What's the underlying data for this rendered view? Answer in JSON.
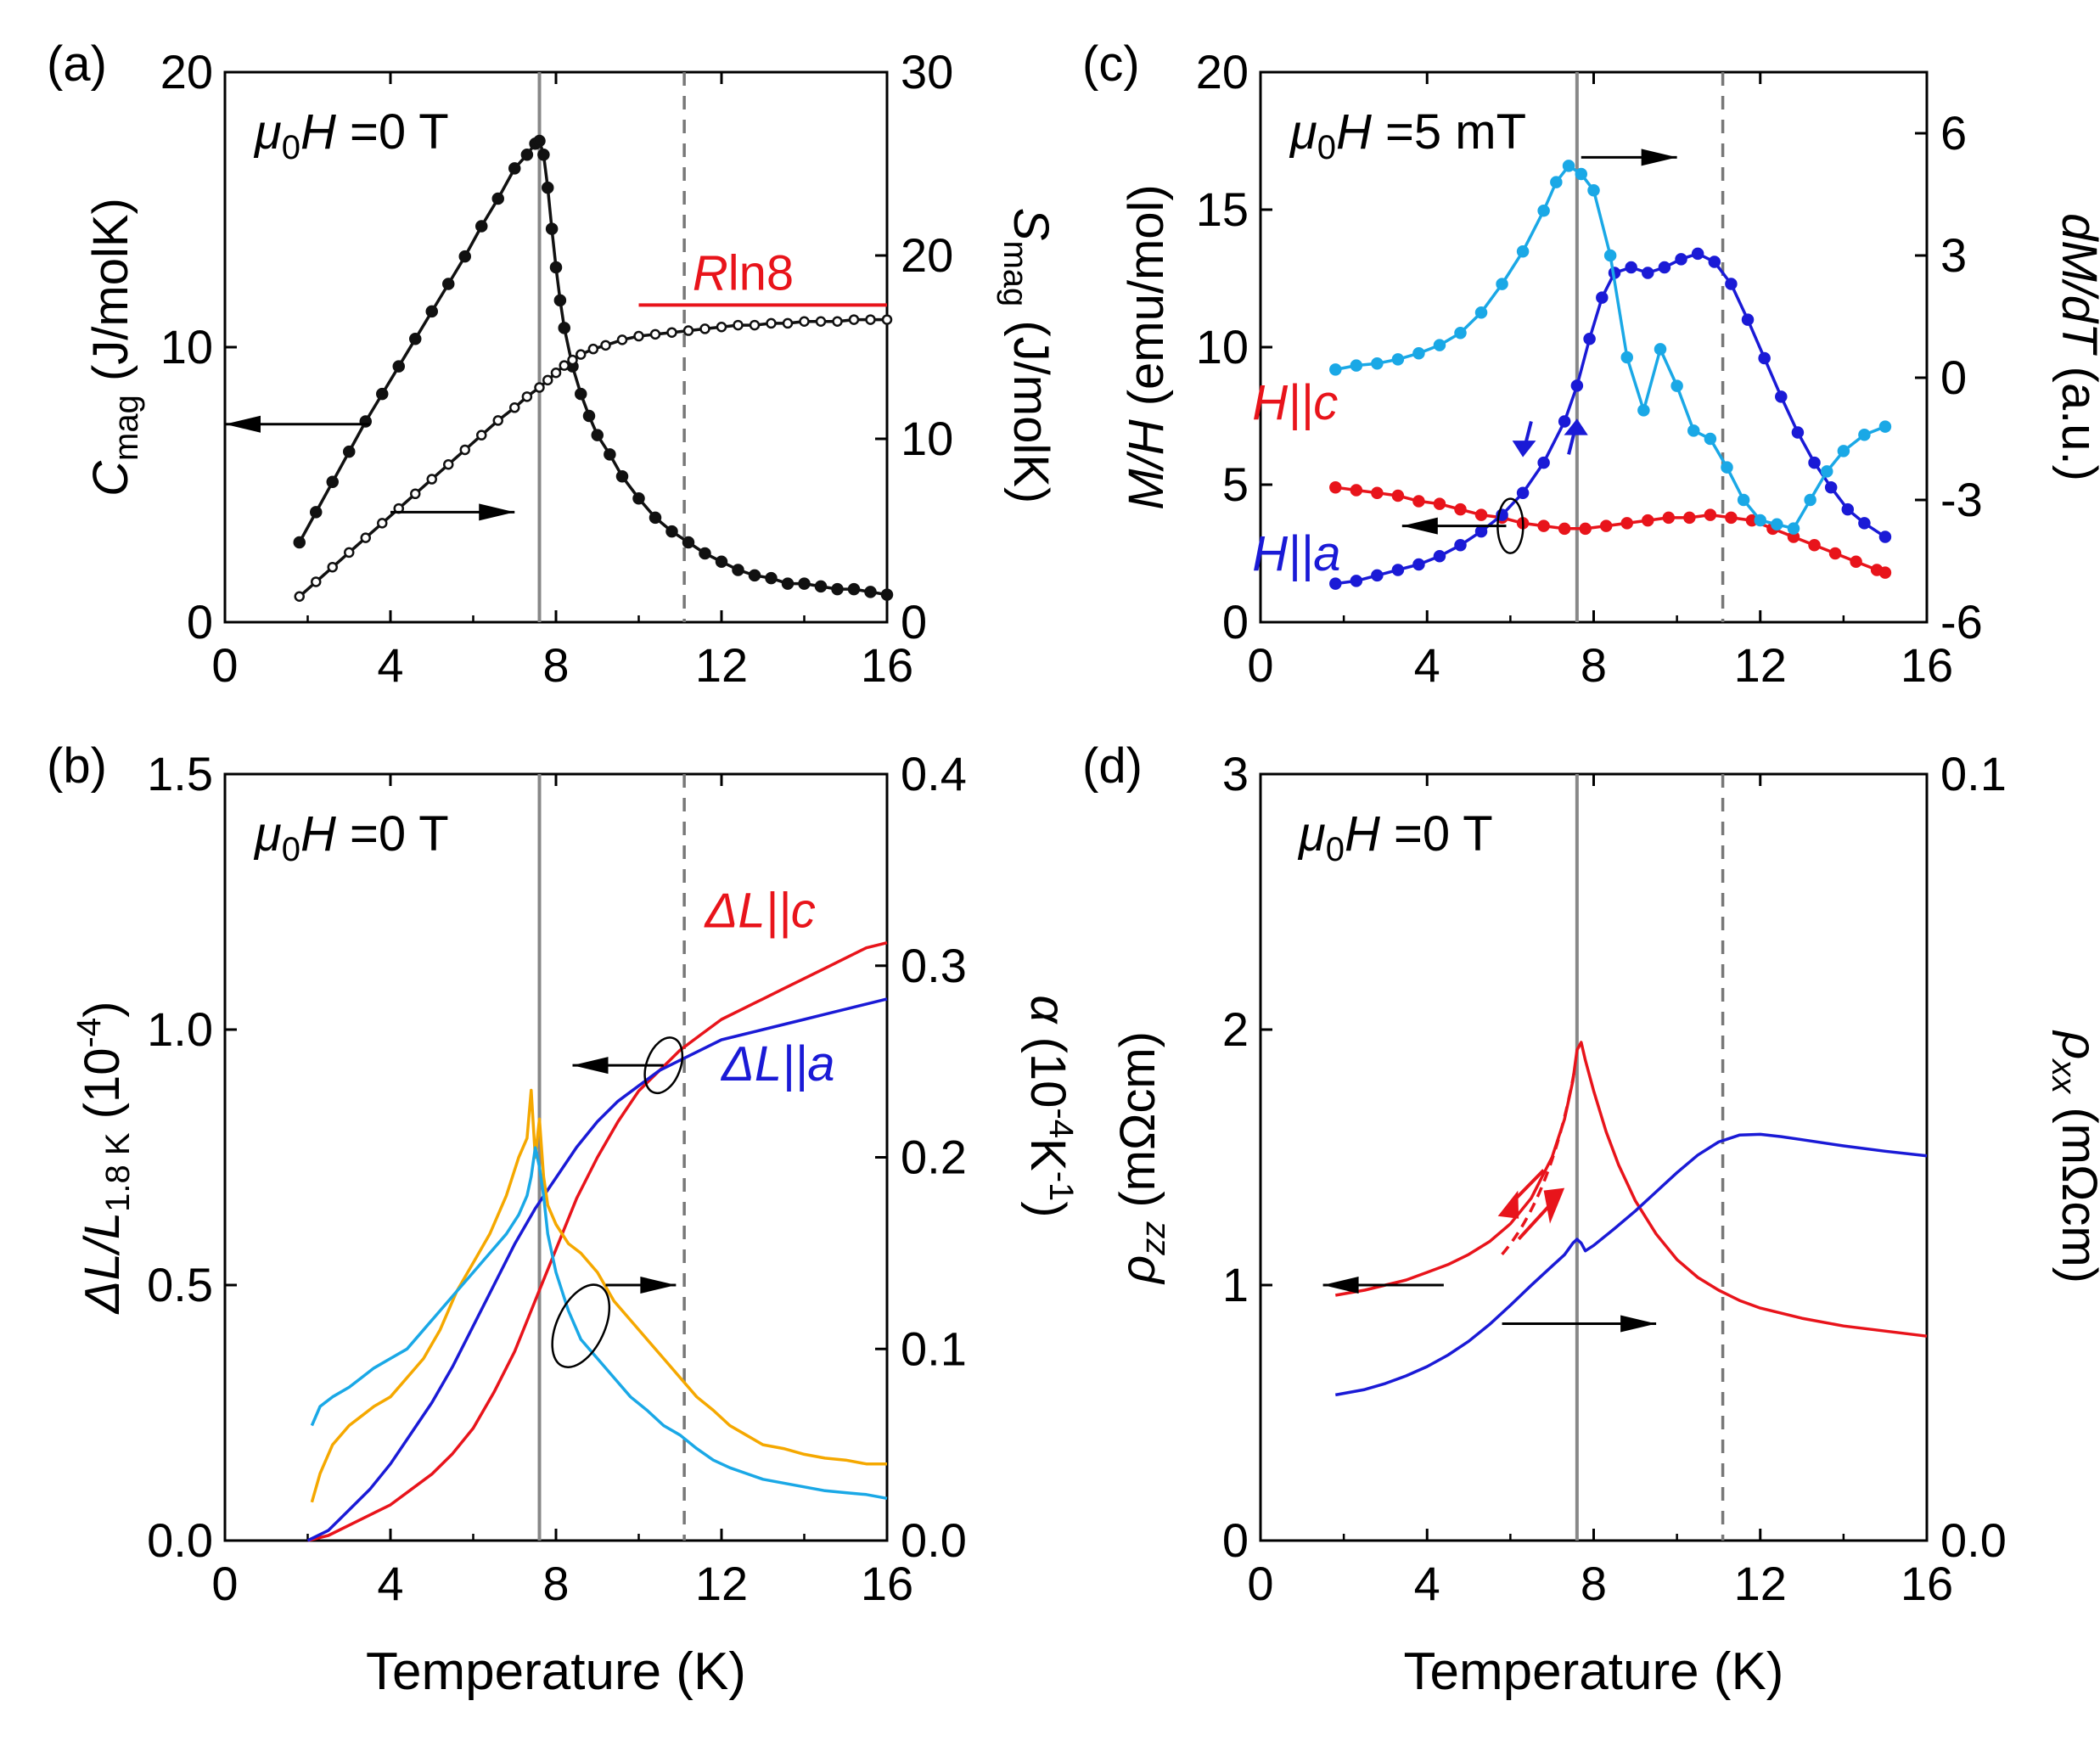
{
  "figure": {
    "xlabel": "Temperature (K)",
    "ref_lines": {
      "solid_T": 7.6,
      "dashed_T": 11.1,
      "solid_color": "#888888",
      "dashed_color": "#777777"
    },
    "colors": {
      "black": "#111111",
      "red": "#e8141b",
      "blue": "#1a1ad6",
      "light_blue": "#1aa8e6",
      "orange": "#f5a800"
    }
  },
  "chart_data": [
    {
      "panel": "a",
      "type": "line",
      "panel_label": "(a)",
      "annotation": {
        "mu": "μ",
        "sub": "0",
        "H": "H",
        "rest": " =0 T"
      },
      "xlim": [
        0,
        16
      ],
      "xticks": [
        0,
        4,
        8,
        12,
        16
      ],
      "ylabel_left": {
        "main": "C",
        "sub": "mag",
        "unit": " (J/molK)"
      },
      "ylabel_right": {
        "main": "S",
        "sub": "mag",
        "unit": " (J/molK)"
      },
      "ylim_left": [
        0,
        20
      ],
      "yticks_left": [
        0,
        10,
        20
      ],
      "ylim_right": [
        0,
        30
      ],
      "yticks_right": [
        0,
        10,
        20,
        30
      ],
      "rln8": {
        "label_R": "R",
        "label_rest": "ln8",
        "value": 17.3,
        "x_range": [
          10,
          16
        ]
      },
      "series": [
        {
          "name": "C_mag",
          "axis": "left",
          "color": "#111111",
          "marker": "filled",
          "x": [
            1.8,
            2.2,
            2.6,
            3.0,
            3.4,
            3.8,
            4.2,
            4.6,
            5.0,
            5.4,
            5.8,
            6.2,
            6.6,
            7.0,
            7.3,
            7.5,
            7.6,
            7.7,
            7.8,
            7.9,
            8.0,
            8.1,
            8.2,
            8.4,
            8.6,
            8.8,
            9.0,
            9.3,
            9.6,
            10.0,
            10.4,
            10.8,
            11.2,
            11.6,
            12.0,
            12.4,
            12.8,
            13.2,
            13.6,
            14.0,
            14.4,
            14.8,
            15.2,
            15.6,
            16.0
          ],
          "y": [
            2.9,
            4.0,
            5.1,
            6.2,
            7.3,
            8.3,
            9.3,
            10.3,
            11.3,
            12.3,
            13.3,
            14.4,
            15.4,
            16.5,
            17.0,
            17.4,
            17.5,
            17.0,
            15.8,
            14.3,
            12.9,
            11.7,
            10.7,
            9.3,
            8.3,
            7.5,
            6.8,
            6.1,
            5.3,
            4.5,
            3.8,
            3.3,
            2.9,
            2.5,
            2.2,
            1.9,
            1.7,
            1.6,
            1.4,
            1.4,
            1.3,
            1.2,
            1.2,
            1.1,
            1.0
          ]
        },
        {
          "name": "S_mag",
          "axis": "right",
          "color": "#111111",
          "marker": "open",
          "x": [
            1.8,
            2.2,
            2.6,
            3.0,
            3.4,
            3.8,
            4.2,
            4.6,
            5.0,
            5.4,
            5.8,
            6.2,
            6.6,
            7.0,
            7.3,
            7.6,
            7.8,
            8.0,
            8.2,
            8.4,
            8.6,
            8.9,
            9.2,
            9.6,
            10.0,
            10.4,
            10.8,
            11.2,
            11.6,
            12.0,
            12.4,
            12.8,
            13.2,
            13.6,
            14.0,
            14.4,
            14.8,
            15.2,
            15.6,
            16.0
          ],
          "y": [
            1.4,
            2.2,
            3.0,
            3.8,
            4.6,
            5.4,
            6.2,
            7.0,
            7.8,
            8.6,
            9.4,
            10.2,
            11.0,
            11.7,
            12.3,
            12.8,
            13.2,
            13.6,
            14.0,
            14.3,
            14.6,
            14.9,
            15.1,
            15.4,
            15.6,
            15.7,
            15.8,
            15.9,
            16.0,
            16.1,
            16.2,
            16.2,
            16.3,
            16.3,
            16.4,
            16.4,
            16.4,
            16.5,
            16.5,
            16.5
          ]
        }
      ]
    },
    {
      "panel": "b",
      "type": "line",
      "panel_label": "(b)",
      "annotation": {
        "mu": "μ",
        "sub": "0",
        "H": "H",
        "rest": " =0 T"
      },
      "xlim": [
        0,
        16
      ],
      "xticks": [
        0,
        4,
        8,
        12,
        16
      ],
      "ylabel_left": {
        "main1": "ΔL/L",
        "sub": "1.8 K",
        "unit": " (10",
        "exp": "-4",
        "close": ")"
      },
      "ylabel_right": {
        "main": "α",
        "unit": " (10",
        "exp": "-4",
        "mid": "K",
        "exp2": "-1",
        "close": ")"
      },
      "ylim_left": [
        0,
        1.5
      ],
      "yticks_left": [
        0.0,
        0.5,
        1.0,
        1.5
      ],
      "ytick_labels_left": [
        "0.0",
        "0.5",
        "1.0",
        "1.5"
      ],
      "ylim_right": [
        0,
        0.4
      ],
      "yticks_right": [
        0.0,
        0.1,
        0.2,
        0.3,
        0.4
      ],
      "ytick_labels_right": [
        "0.0",
        "0.1",
        "0.2",
        "0.3",
        "0.4"
      ],
      "legend": [
        {
          "text_delta": "ΔL",
          "text_rest": "||c",
          "color": "#e8141b"
        },
        {
          "text_delta": "ΔL",
          "text_rest": "||a",
          "color": "#1a1ad6"
        }
      ],
      "series": [
        {
          "name": "dL/L || c",
          "axis": "left",
          "color": "#e8141b",
          "x": [
            2.0,
            2.5,
            3.0,
            3.5,
            4.0,
            4.5,
            5.0,
            5.5,
            6.0,
            6.5,
            7.0,
            7.5,
            8.0,
            8.5,
            9.0,
            9.5,
            10.0,
            10.5,
            11.0,
            11.5,
            12.0,
            12.5,
            13.0,
            13.5,
            14.0,
            14.5,
            15.0,
            15.5,
            16.0
          ],
          "y": [
            0.0,
            0.01,
            0.03,
            0.05,
            0.07,
            0.1,
            0.13,
            0.17,
            0.22,
            0.29,
            0.37,
            0.47,
            0.57,
            0.67,
            0.75,
            0.82,
            0.88,
            0.92,
            0.96,
            0.99,
            1.02,
            1.04,
            1.06,
            1.08,
            1.1,
            1.12,
            1.14,
            1.16,
            1.17
          ]
        },
        {
          "name": "dL/L || a",
          "axis": "left",
          "color": "#1a1ad6",
          "x": [
            2.0,
            2.5,
            3.0,
            3.5,
            4.0,
            4.5,
            5.0,
            5.5,
            6.0,
            6.5,
            7.0,
            7.5,
            8.0,
            8.5,
            9.0,
            9.5,
            10.0,
            10.5,
            11.0,
            11.5,
            12.0,
            12.5,
            13.0,
            13.5,
            14.0,
            14.5,
            15.0,
            15.5,
            16.0
          ],
          "y": [
            0.0,
            0.02,
            0.06,
            0.1,
            0.15,
            0.21,
            0.27,
            0.34,
            0.42,
            0.5,
            0.58,
            0.65,
            0.71,
            0.77,
            0.82,
            0.86,
            0.89,
            0.92,
            0.94,
            0.96,
            0.98,
            0.99,
            1.0,
            1.01,
            1.02,
            1.03,
            1.04,
            1.05,
            1.06
          ]
        },
        {
          "name": "alpha || c",
          "axis": "right",
          "color": "#f5a800",
          "x": [
            2.1,
            2.3,
            2.6,
            3.0,
            3.3,
            3.6,
            4.0,
            4.4,
            4.8,
            5.2,
            5.6,
            6.0,
            6.4,
            6.8,
            7.1,
            7.3,
            7.4,
            7.5,
            7.6,
            7.7,
            7.8,
            8.0,
            8.3,
            8.6,
            9.0,
            9.4,
            9.8,
            10.2,
            10.6,
            11.0,
            11.4,
            11.8,
            12.2,
            12.6,
            13.0,
            13.5,
            14.0,
            14.5,
            15.0,
            15.5,
            16.0
          ],
          "y": [
            0.02,
            0.035,
            0.05,
            0.06,
            0.065,
            0.07,
            0.075,
            0.085,
            0.095,
            0.11,
            0.13,
            0.145,
            0.16,
            0.18,
            0.2,
            0.21,
            0.235,
            0.2,
            0.22,
            0.19,
            0.175,
            0.165,
            0.155,
            0.15,
            0.14,
            0.125,
            0.115,
            0.105,
            0.095,
            0.085,
            0.075,
            0.068,
            0.06,
            0.055,
            0.05,
            0.048,
            0.045,
            0.043,
            0.042,
            0.04,
            0.04
          ]
        },
        {
          "name": "alpha || a",
          "axis": "right",
          "color": "#1aa8e6",
          "x": [
            2.1,
            2.3,
            2.6,
            3.0,
            3.3,
            3.6,
            4.0,
            4.4,
            4.8,
            5.2,
            5.6,
            6.0,
            6.4,
            6.8,
            7.1,
            7.3,
            7.4,
            7.5,
            7.6,
            7.7,
            7.8,
            8.0,
            8.3,
            8.6,
            9.0,
            9.4,
            9.8,
            10.2,
            10.6,
            11.0,
            11.4,
            11.8,
            12.2,
            12.6,
            13.0,
            13.5,
            14.0,
            14.5,
            15.0,
            15.5,
            16.0
          ],
          "y": [
            0.06,
            0.07,
            0.075,
            0.08,
            0.085,
            0.09,
            0.095,
            0.1,
            0.11,
            0.12,
            0.13,
            0.14,
            0.15,
            0.16,
            0.17,
            0.18,
            0.19,
            0.205,
            0.195,
            0.18,
            0.16,
            0.14,
            0.12,
            0.105,
            0.095,
            0.085,
            0.075,
            0.068,
            0.06,
            0.055,
            0.048,
            0.042,
            0.038,
            0.035,
            0.032,
            0.03,
            0.028,
            0.026,
            0.025,
            0.024,
            0.022
          ]
        }
      ]
    },
    {
      "panel": "c",
      "type": "line",
      "panel_label": "(c)",
      "annotation": {
        "mu": "μ",
        "sub": "0",
        "H": "H",
        "rest": " =5 mT"
      },
      "xlim": [
        0,
        16
      ],
      "xticks": [
        0,
        4,
        8,
        12,
        16
      ],
      "ylabel_left": {
        "main": "M/H",
        "unit": " (emu/mol)"
      },
      "ylabel_right": {
        "d": "dM/d",
        "T": "T",
        "unit": " (a.u.)"
      },
      "ylim_left": [
        0,
        20
      ],
      "yticks_left": [
        0,
        5,
        10,
        15,
        20
      ],
      "ylim_right": [
        -6,
        7.5
      ],
      "yticks_right": [
        -6,
        -3,
        0,
        3,
        6
      ],
      "legend": [
        {
          "H": "H",
          "rest": "||c",
          "color": "#e8141b"
        },
        {
          "H": "H",
          "rest": "||a",
          "color": "#1a1ad6"
        }
      ],
      "series": [
        {
          "name": "M/H H||c",
          "axis": "left",
          "color": "#e8141b",
          "marker": "filled",
          "x": [
            1.8,
            2.3,
            2.8,
            3.3,
            3.8,
            4.3,
            4.8,
            5.3,
            5.8,
            6.3,
            6.8,
            7.3,
            7.8,
            8.3,
            8.8,
            9.3,
            9.8,
            10.3,
            10.8,
            11.3,
            11.8,
            12.3,
            12.8,
            13.3,
            13.8,
            14.3,
            14.8,
            15.0
          ],
          "y": [
            4.9,
            4.8,
            4.7,
            4.6,
            4.4,
            4.3,
            4.1,
            3.9,
            3.8,
            3.6,
            3.5,
            3.4,
            3.4,
            3.5,
            3.6,
            3.7,
            3.8,
            3.8,
            3.9,
            3.8,
            3.7,
            3.4,
            3.1,
            2.8,
            2.5,
            2.2,
            1.9,
            1.8
          ]
        },
        {
          "name": "M/H H||a",
          "axis": "left",
          "color": "#1a1ad6",
          "marker": "filled",
          "x": [
            1.8,
            2.3,
            2.8,
            3.3,
            3.8,
            4.3,
            4.8,
            5.3,
            5.8,
            6.3,
            6.8,
            7.3,
            7.6,
            7.9,
            8.2,
            8.5,
            8.9,
            9.3,
            9.7,
            10.1,
            10.5,
            10.9,
            11.3,
            11.7,
            12.1,
            12.5,
            12.9,
            13.3,
            13.7,
            14.1,
            14.5,
            15.0
          ],
          "y": [
            1.4,
            1.5,
            1.7,
            1.9,
            2.1,
            2.4,
            2.8,
            3.3,
            3.9,
            4.7,
            5.8,
            7.3,
            8.6,
            10.3,
            11.8,
            12.7,
            12.9,
            12.7,
            12.9,
            13.2,
            13.4,
            13.1,
            12.3,
            11.0,
            9.6,
            8.2,
            6.9,
            5.8,
            4.9,
            4.1,
            3.6,
            3.1
          ]
        },
        {
          "name": "dM/dT",
          "axis": "right",
          "color": "#1aa8e6",
          "marker": "filled",
          "x": [
            1.8,
            2.3,
            2.8,
            3.3,
            3.8,
            4.3,
            4.8,
            5.3,
            5.8,
            6.3,
            6.8,
            7.1,
            7.4,
            7.7,
            8.0,
            8.4,
            8.8,
            9.2,
            9.6,
            10.0,
            10.4,
            10.8,
            11.2,
            11.6,
            12.0,
            12.4,
            12.8,
            13.2,
            13.6,
            14.0,
            14.5,
            15.0
          ],
          "y": [
            0.2,
            0.3,
            0.35,
            0.45,
            0.6,
            0.8,
            1.1,
            1.6,
            2.3,
            3.1,
            4.1,
            4.8,
            5.2,
            5.0,
            4.6,
            3.0,
            0.5,
            -0.8,
            0.7,
            -0.2,
            -1.3,
            -1.5,
            -2.2,
            -3.0,
            -3.5,
            -3.6,
            -3.7,
            -3.0,
            -2.3,
            -1.8,
            -1.4,
            -1.2
          ]
        }
      ]
    },
    {
      "panel": "d",
      "type": "line",
      "panel_label": "(d)",
      "annotation": {
        "mu": "μ",
        "sub": "0",
        "H": "H",
        "rest": " =0 T"
      },
      "xlim": [
        0,
        16
      ],
      "xticks": [
        0,
        4,
        8,
        12,
        16
      ],
      "ylabel_left": {
        "main": "ρ",
        "sub": "zz",
        "unit": " (mΩcm)"
      },
      "ylabel_right": {
        "main": "ρ",
        "sub": "xx",
        "unit": " (mΩcm)"
      },
      "ylim_left": [
        0,
        3
      ],
      "yticks_left": [
        0,
        1,
        2,
        3
      ],
      "ylim_right": [
        0,
        0.1
      ],
      "yticks_right": [
        0.0,
        0.1
      ],
      "ytick_labels_right": [
        "0.0",
        "0.1"
      ],
      "series": [
        {
          "name": "rho_zz",
          "axis": "left",
          "color": "#e8141b",
          "x": [
            1.8,
            2.5,
            3.0,
            3.5,
            4.0,
            4.5,
            5.0,
            5.5,
            6.0,
            6.5,
            7.0,
            7.3,
            7.5,
            7.6,
            7.7,
            7.8,
            8.0,
            8.3,
            8.6,
            9.0,
            9.5,
            10.0,
            10.5,
            11.0,
            11.5,
            12.0,
            12.5,
            13.0,
            14.0,
            15.0,
            16.0
          ],
          "y": [
            0.96,
            0.98,
            1.0,
            1.02,
            1.05,
            1.08,
            1.12,
            1.17,
            1.24,
            1.34,
            1.5,
            1.65,
            1.8,
            1.92,
            1.95,
            1.88,
            1.76,
            1.6,
            1.47,
            1.33,
            1.2,
            1.1,
            1.03,
            0.98,
            0.94,
            0.91,
            0.89,
            0.87,
            0.84,
            0.82,
            0.8
          ]
        },
        {
          "name": "rho_xx",
          "axis": "right",
          "color": "#1a1ad6",
          "x": [
            1.8,
            2.5,
            3.0,
            3.5,
            4.0,
            4.5,
            5.0,
            5.5,
            6.0,
            6.5,
            7.0,
            7.3,
            7.5,
            7.6,
            7.7,
            7.8,
            8.0,
            8.5,
            9.0,
            9.5,
            10.0,
            10.5,
            11.0,
            11.5,
            12.0,
            12.5,
            13.0,
            14.0,
            15.0,
            16.0
          ],
          "y": [
            0.019,
            0.0197,
            0.0205,
            0.0215,
            0.0227,
            0.0242,
            0.026,
            0.0282,
            0.0307,
            0.0333,
            0.0358,
            0.0373,
            0.0388,
            0.0393,
            0.0388,
            0.0378,
            0.0385,
            0.0407,
            0.043,
            0.0455,
            0.048,
            0.0503,
            0.052,
            0.0529,
            0.053,
            0.0527,
            0.0523,
            0.0515,
            0.0508,
            0.0502
          ]
        }
      ]
    }
  ]
}
